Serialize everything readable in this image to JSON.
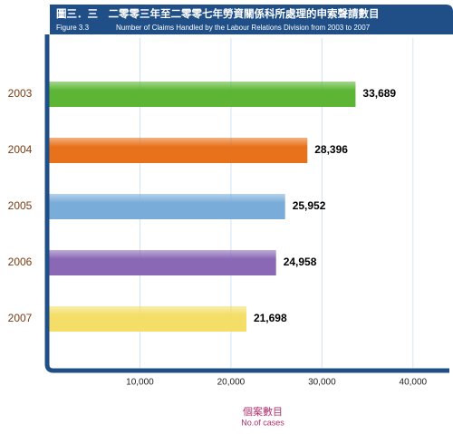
{
  "chart_data": {
    "type": "barh",
    "title": "圖三．三　二零零三年至二零零七年勞資關係科所處理的申索聲請數目",
    "figure_label": "Figure 3.3",
    "subtitle": "Number of Claims Handled by the Labour Relations Division from 2003 to 2007",
    "categories": [
      "2003",
      "2004",
      "2005",
      "2006",
      "2007"
    ],
    "series": [
      {
        "values": [
          33689,
          28396,
          25952,
          24958,
          21698
        ],
        "value_labels": [
          "33,689",
          "28,396",
          "25,952",
          "24,958",
          "21,698"
        ],
        "colors": [
          "#5cb534",
          "#e8721c",
          "#79acd9",
          "#8a68b5",
          "#f4de68"
        ]
      }
    ],
    "xlim": [
      0,
      44000
    ],
    "xticks": [
      {
        "value": 10000,
        "label": "10,000"
      },
      {
        "value": 20000,
        "label": "20,000"
      },
      {
        "value": 30000,
        "label": "30,000"
      },
      {
        "value": 40000,
        "label": "40,000"
      }
    ],
    "xlabel": "個案數目",
    "xlabel_en": "No.of cases",
    "grid": true
  }
}
